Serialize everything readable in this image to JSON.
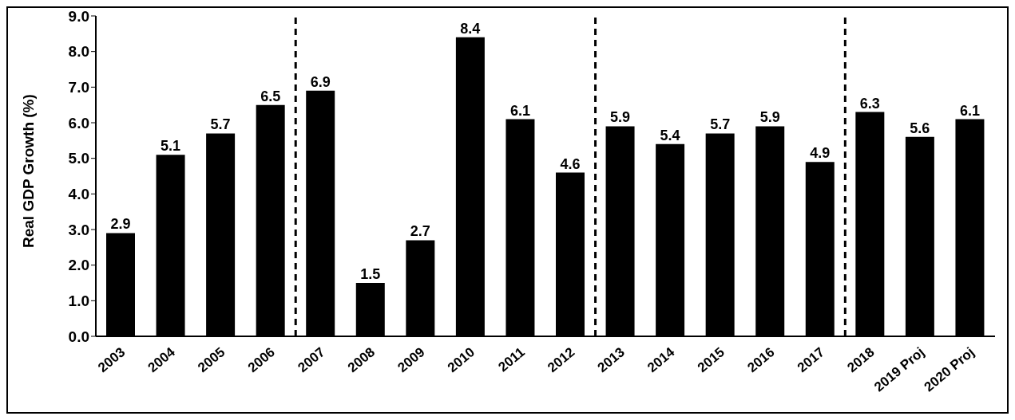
{
  "chart_data": {
    "type": "bar",
    "ylabel": "Real GDP Growth (%)",
    "categories": [
      "2003",
      "2004",
      "2005",
      "2006",
      "2007",
      "2008",
      "2009",
      "2010",
      "2011",
      "2012",
      "2013",
      "2014",
      "2015",
      "2016",
      "2017",
      "2018",
      "2019 Proj",
      "2020 Proj"
    ],
    "values": [
      2.9,
      5.1,
      5.7,
      6.5,
      6.9,
      1.5,
      2.7,
      8.4,
      6.1,
      4.6,
      5.9,
      5.4,
      5.7,
      5.9,
      4.9,
      6.3,
      5.6,
      6.1
    ],
    "color": "#000000",
    "ylim": [
      0,
      9
    ],
    "yticks": [
      {
        "value": 0,
        "label": "0.0"
      },
      {
        "value": 1,
        "label": "1.0"
      },
      {
        "value": 2,
        "label": "2.0"
      },
      {
        "value": 3,
        "label": "3.0"
      },
      {
        "value": 4,
        "label": "4.0"
      },
      {
        "value": 5,
        "label": "5.0"
      },
      {
        "value": 6,
        "label": "6.0"
      },
      {
        "value": 7,
        "label": "7.0"
      },
      {
        "value": 8,
        "label": "8.0"
      },
      {
        "value": 9,
        "label": "9.0"
      }
    ],
    "data_labels": true,
    "grid": false,
    "legend": false
  }
}
